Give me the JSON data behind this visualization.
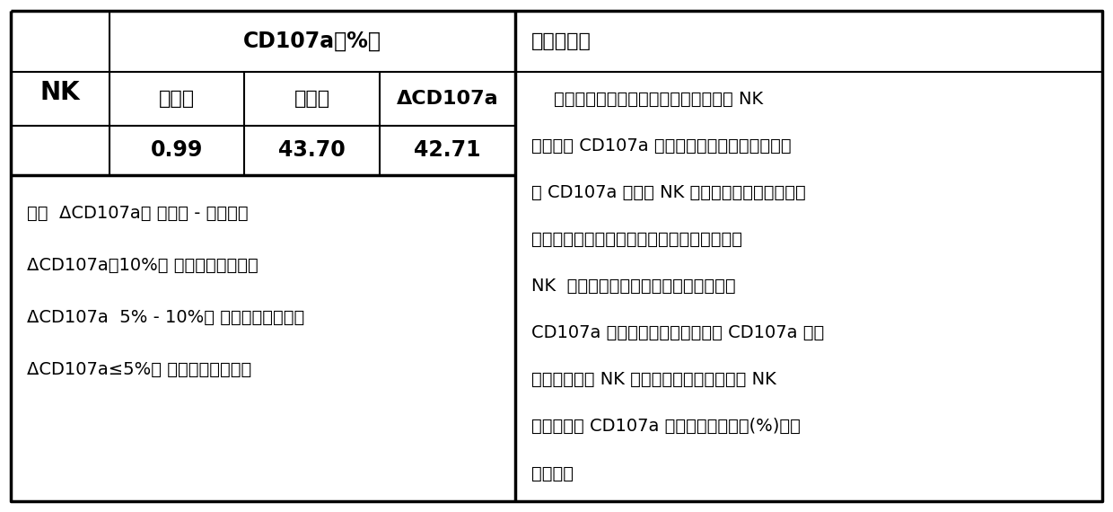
{
  "figsize": [
    12.4,
    5.7
  ],
  "dpi": 100,
  "background_color": "#ffffff",
  "border_color": "#000000",
  "notes_text": [
    "注：  ΔCD107a＝ 刺激后 - 刺激前；",
    "ΔCD107a＞10%： 脱颗粒功能正常；",
    "ΔCD107a  5% - 10%： 脱颗粒功能异常；",
    "ΔCD107a≤5%： 脱颗粒功能缺陷。"
  ],
  "analysis_title": "数据分析：",
  "analysis_lines": [
    "    本实验通过流式细胞术检测送检样品中 NK",
    "细胞膜上 CD107a 分子的表达。送检样品经刺激",
    "后 CD107a 分子在 NK 细胞膜上的增加幅度可反",
    "映此细胞是否存在脱颗粒功能的缺陷或异常。",
    "NK  细胞中的一部分亚群经刺激后可表达",
    "CD107a 分子，在流式结果上显示 CD107a 阳性",
    "和阴性表达的 NK 细胞分群明显，因此，在 NK",
    "细胞中，以 CD107a 阳性细胞的百分率(%)来表",
    "示结果。"
  ],
  "col_header1": "CD107a（%）",
  "col_headers2": [
    "刺激前",
    "刺激后",
    "ΔCD107a"
  ],
  "row_label": "NK",
  "data_values": [
    "0.99",
    "43.70",
    "42.71"
  ]
}
